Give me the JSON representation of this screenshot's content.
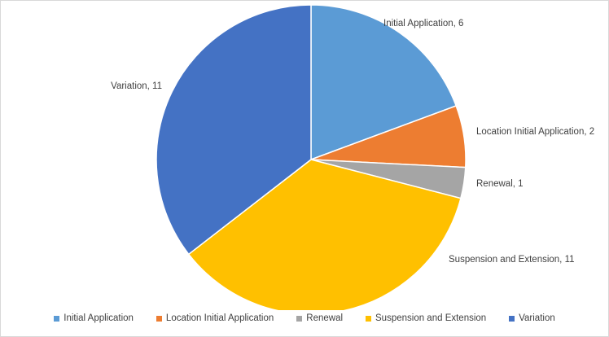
{
  "chart_data": {
    "type": "pie",
    "title": "",
    "categories": [
      "Initial Application",
      "Location Initial Application",
      "Renewal",
      "Suspension and Extension",
      "Variation"
    ],
    "values": [
      6,
      2,
      1,
      11,
      11
    ],
    "colors": [
      "#5b9bd5",
      "#ed7d31",
      "#a5a5a5",
      "#ffc000",
      "#4472c4"
    ],
    "data_labels": [
      "Initial Application, 6",
      "Location Initial Application, 2",
      "Renewal, 1",
      "Suspension and Extension, 11",
      "Variation, 11"
    ],
    "legend": {
      "position": "bottom",
      "entries": [
        "Initial Application",
        "Location Initial Application",
        "Renewal",
        "Suspension and Extension",
        "Variation"
      ]
    }
  }
}
